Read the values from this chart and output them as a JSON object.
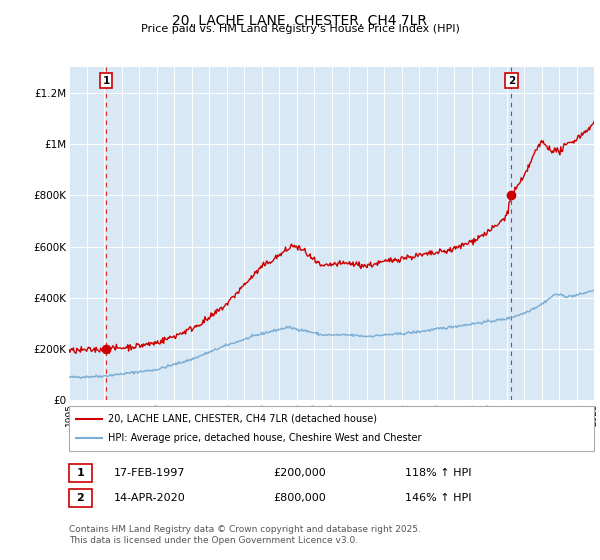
{
  "title": "20, LACHE LANE, CHESTER, CH4 7LR",
  "subtitle": "Price paid vs. HM Land Registry's House Price Index (HPI)",
  "title_fontsize": 10,
  "subtitle_fontsize": 8.5,
  "plot_bg_color": "#d9e8f5",
  "house_color": "#cc0000",
  "hpi_color": "#7aadd4",
  "ylim": [
    0,
    1300000
  ],
  "yticks": [
    0,
    200000,
    400000,
    600000,
    800000,
    1000000,
    1200000
  ],
  "ytick_labels": [
    "£0",
    "£200K",
    "£400K",
    "£600K",
    "£800K",
    "£1M",
    "£1.2M"
  ],
  "xmin": 1995,
  "xmax": 2025,
  "marker1_x": 1997.12,
  "marker1_y": 200000,
  "marker2_x": 2020.28,
  "marker2_y": 800000,
  "legend_house": "20, LACHE LANE, CHESTER, CH4 7LR (detached house)",
  "legend_hpi": "HPI: Average price, detached house, Cheshire West and Chester",
  "note1_label": "1",
  "note1_date": "17-FEB-1997",
  "note1_price": "£200,000",
  "note1_hpi": "118% ↑ HPI",
  "note2_label": "2",
  "note2_date": "14-APR-2020",
  "note2_price": "£800,000",
  "note2_hpi": "146% ↑ HPI",
  "footer": "Contains HM Land Registry data © Crown copyright and database right 2025.\nThis data is licensed under the Open Government Licence v3.0."
}
